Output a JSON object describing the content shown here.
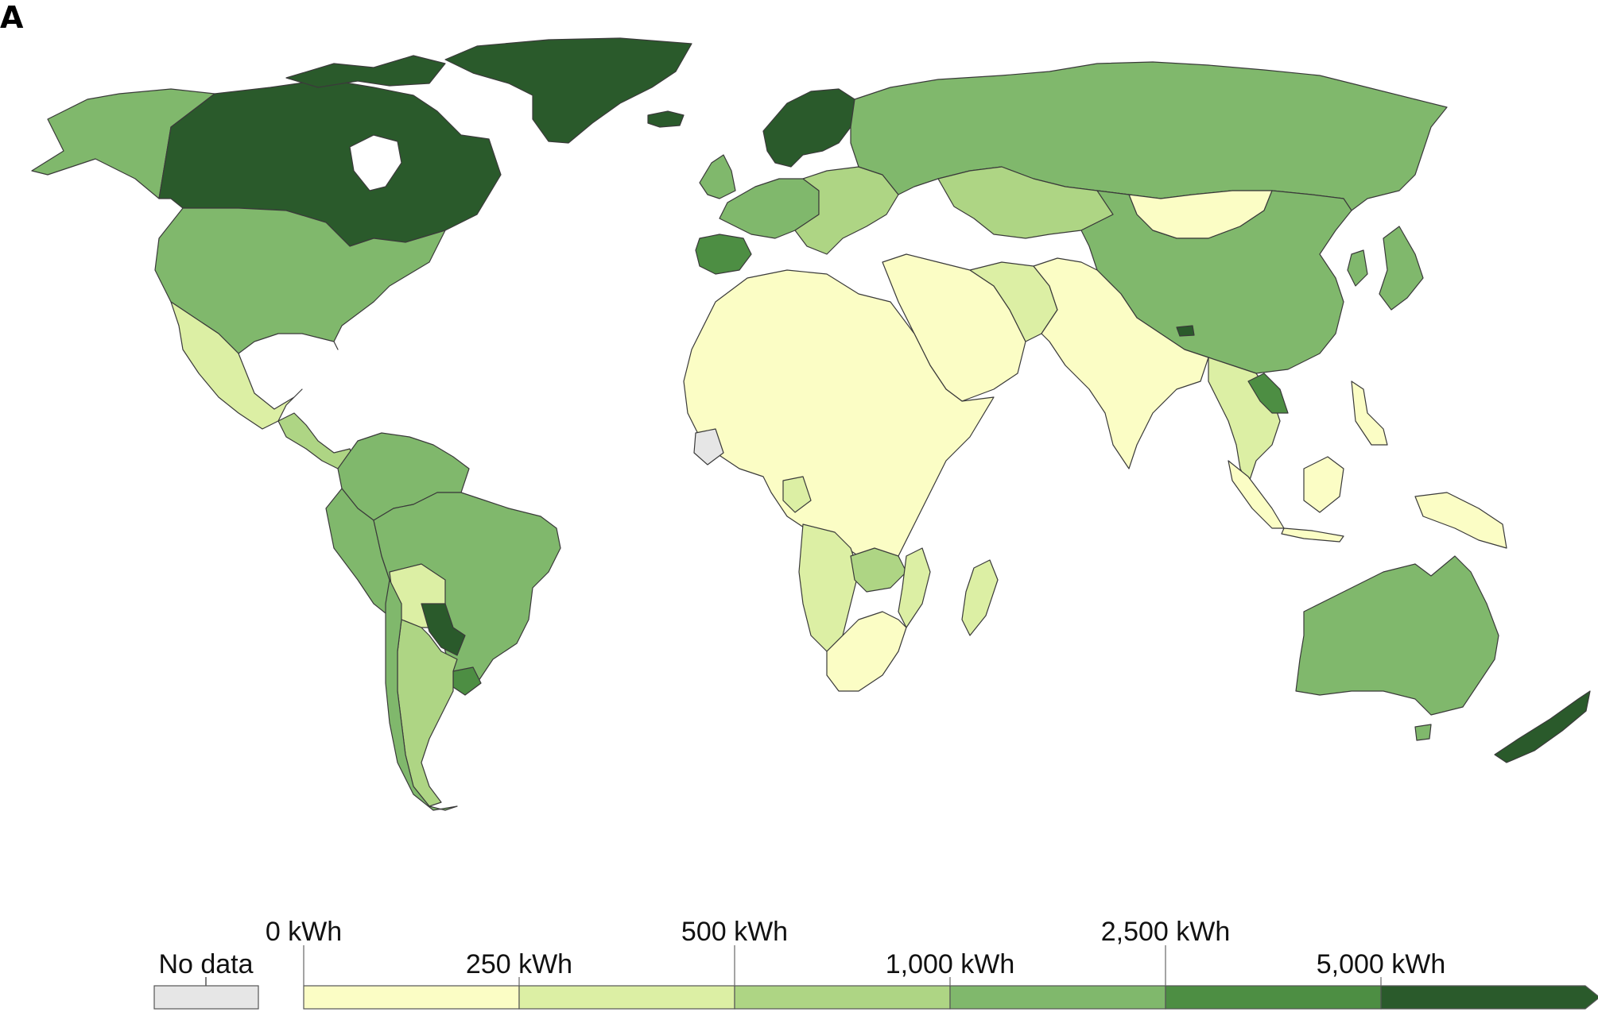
{
  "panel_label": "A",
  "legend": {
    "no_data_label": "No data",
    "no_data_color": "#e6e6e6",
    "upper_ticks": [
      "0 kWh",
      "500 kWh",
      "2,500 kWh"
    ],
    "lower_ticks": [
      "250 kWh",
      "1,000 kWh",
      "5,000 kWh"
    ],
    "bins": [
      {
        "range": "0–250 kWh",
        "color": "#fbfdc5"
      },
      {
        "range": "250–500 kWh",
        "color": "#dcefa4"
      },
      {
        "range": "500–1,000 kWh",
        "color": "#aed584"
      },
      {
        "range": "1,000–2,500 kWh",
        "color": "#80b86c"
      },
      {
        "range": "2,500–5,000 kWh",
        "color": "#4d8e43"
      },
      {
        "range": ">5,000 kWh",
        "color": "#2a5a2b"
      }
    ]
  },
  "regions": [
    {
      "name": "Canada",
      "color": "#2a5a2b"
    },
    {
      "name": "Greenland",
      "color": "#2a5a2b"
    },
    {
      "name": "Alaska",
      "color": "#80b86c"
    },
    {
      "name": "United States",
      "color": "#80b86c"
    },
    {
      "name": "Mexico",
      "color": "#dcefa4"
    },
    {
      "name": "Central America",
      "color": "#aed584"
    },
    {
      "name": "Colombia / Venezuela",
      "color": "#80b86c"
    },
    {
      "name": "Brazil",
      "color": "#80b86c"
    },
    {
      "name": "Peru / Ecuador",
      "color": "#80b86c"
    },
    {
      "name": "Bolivia",
      "color": "#dcefa4"
    },
    {
      "name": "Paraguay",
      "color": "#2a5a2b"
    },
    {
      "name": "Uruguay",
      "color": "#4d8e43"
    },
    {
      "name": "Argentina",
      "color": "#aed584"
    },
    {
      "name": "Chile",
      "color": "#80b86c"
    },
    {
      "name": "Iceland",
      "color": "#2a5a2b"
    },
    {
      "name": "Scandinavia",
      "color": "#2a5a2b"
    },
    {
      "name": "Western Europe",
      "color": "#80b86c"
    },
    {
      "name": "Iberia",
      "color": "#4d8e43"
    },
    {
      "name": "Eastern Europe",
      "color": "#aed584"
    },
    {
      "name": "Russia",
      "color": "#80b86c"
    },
    {
      "name": "Kazakhstan",
      "color": "#aed584"
    },
    {
      "name": "Mongolia",
      "color": "#fbfdc5"
    },
    {
      "name": "China",
      "color": "#80b86c"
    },
    {
      "name": "Japan / Korea",
      "color": "#80b86c"
    },
    {
      "name": "Middle East",
      "color": "#fbfdc5"
    },
    {
      "name": "Iran",
      "color": "#dcefa4"
    },
    {
      "name": "South Asia",
      "color": "#fbfdc5"
    },
    {
      "name": "Laos",
      "color": "#4d8e43"
    },
    {
      "name": "Southeast Asia",
      "color": "#dcefa4"
    },
    {
      "name": "Indonesia / PNG",
      "color": "#fbfdc5"
    },
    {
      "name": "North / West / Central Africa",
      "color": "#fbfdc5"
    },
    {
      "name": "Gabon",
      "color": "#dcefa4"
    },
    {
      "name": "Côte d'Ivoire",
      "color": "#e6e6e6"
    },
    {
      "name": "Angola / Namibia",
      "color": "#dcefa4"
    },
    {
      "name": "Zambia",
      "color": "#aed584"
    },
    {
      "name": "Mozambique",
      "color": "#dcefa4"
    },
    {
      "name": "Southern Africa",
      "color": "#fbfdc5"
    },
    {
      "name": "Madagascar",
      "color": "#dcefa4"
    },
    {
      "name": "Australia",
      "color": "#80b86c"
    },
    {
      "name": "New Zealand",
      "color": "#2a5a2b"
    }
  ]
}
